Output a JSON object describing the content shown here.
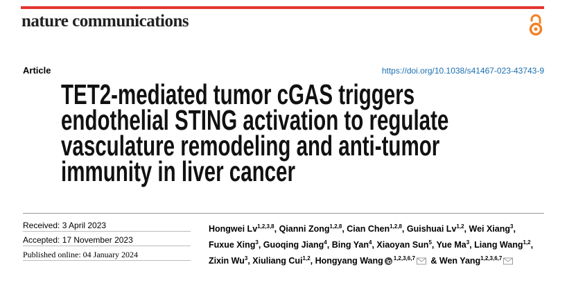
{
  "header": {
    "journal": "nature communications"
  },
  "article_type": "Article",
  "doi": "https://doi.org/10.1038/s41467-023-43743-9",
  "title_lines": [
    "TET2-mediated tumor cGAS triggers",
    "endothelial STING activation to regulate",
    "vasculature remodeling and anti-tumor",
    "immunity in liver cancer"
  ],
  "dates": [
    "Received: 3 April 2023",
    "Accepted: 17 November 2023",
    "Published online: 04 January 2024"
  ],
  "authors": {
    "separator": ",",
    "final_separator": "&",
    "lines": [
      [
        {
          "name": "Hongwei Lv",
          "sup": "1,2,3,8"
        },
        {
          "name": "Qianni Zong",
          "sup": "1,2,8"
        },
        {
          "name": "Cian Chen",
          "sup": "1,2,8"
        },
        {
          "name": "Guishuai Lv",
          "sup": "1,2"
        },
        {
          "name": "Wei Xiang",
          "sup": "3"
        }
      ],
      [
        {
          "name": "Fuxue Xing",
          "sup": "3"
        },
        {
          "name": "Guoqing Jiang",
          "sup": "4"
        },
        {
          "name": "Bing Yan",
          "sup": "4"
        },
        {
          "name": "Xiaoyan Sun",
          "sup": "5"
        },
        {
          "name": "Yue Ma",
          "sup": "3"
        },
        {
          "name": "Liang Wang",
          "sup": "1,2"
        }
      ],
      [
        {
          "name": "Zixin Wu",
          "sup": "3"
        },
        {
          "name": "Xiuliang Cui",
          "sup": "1,2"
        },
        {
          "name": "Hongyang Wang",
          "sup": "1,2,3,6,7",
          "orcid": true,
          "email": true
        },
        {
          "name": "Wen Yang",
          "sup": "1,2,3,6,7",
          "email": true
        }
      ]
    ]
  }
}
